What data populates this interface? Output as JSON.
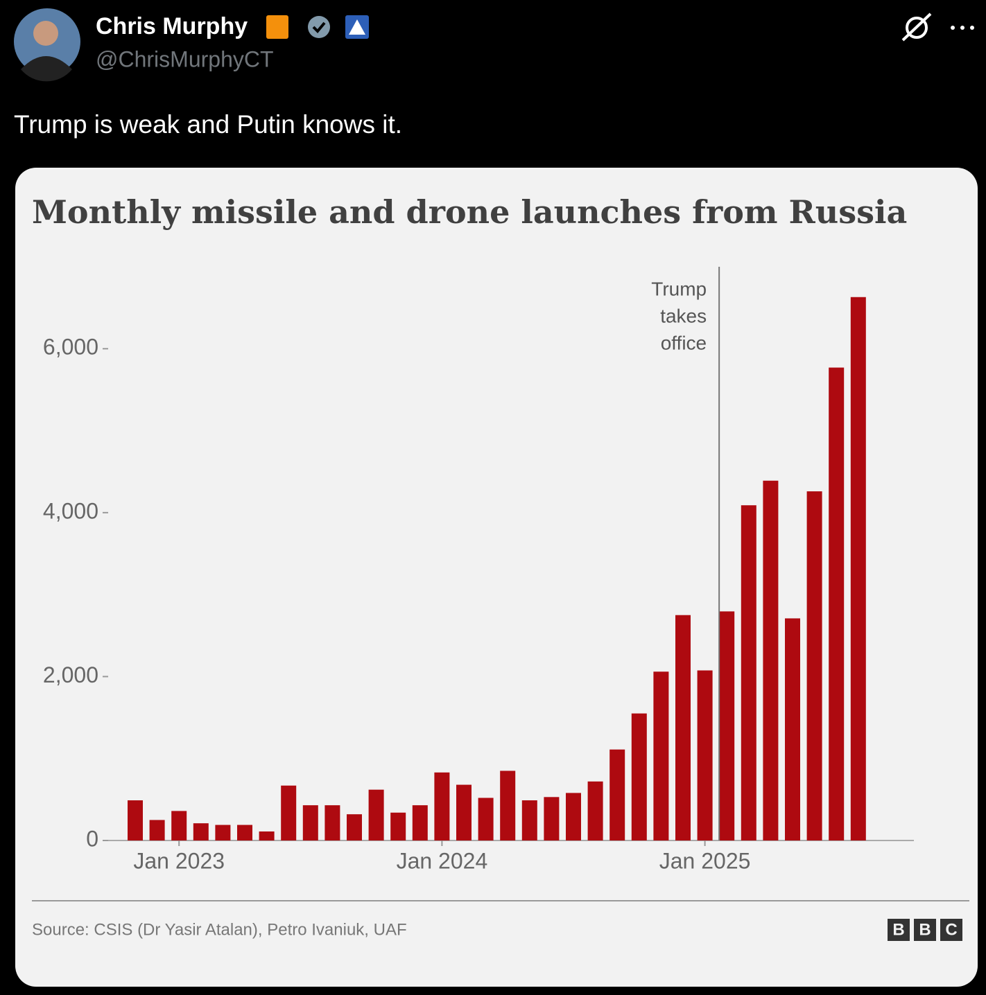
{
  "tweet": {
    "name": "Chris Murphy",
    "handle": "@ChrisMurphyCT",
    "text": "Trump is weak and Putin knows it."
  },
  "chart_data": {
    "type": "bar",
    "title": "Monthly missile and drone launches from Russia",
    "categories": [
      null,
      null,
      "Jan 2023",
      null,
      null,
      null,
      null,
      null,
      null,
      null,
      null,
      null,
      null,
      null,
      "Jan 2024",
      null,
      null,
      null,
      null,
      null,
      null,
      null,
      null,
      null,
      null,
      null,
      "Jan 2025",
      null,
      null,
      null,
      null,
      null,
      null,
      null
    ],
    "values": [
      490,
      250,
      360,
      210,
      190,
      190,
      110,
      670,
      430,
      430,
      320,
      620,
      340,
      430,
      830,
      680,
      520,
      850,
      490,
      530,
      580,
      720,
      1110,
      1550,
      2060,
      2750,
      2075,
      2795,
      4090,
      4390,
      2710,
      4260,
      5770,
      6630
    ],
    "color": "#ae0a10",
    "ylim": [
      0,
      7000
    ],
    "yticks": [
      0,
      {
        "value": 2000,
        "label": "2,000"
      },
      {
        "value": 4000,
        "label": "4,000"
      },
      {
        "value": 6000,
        "label": "6,000"
      }
    ],
    "annotation": [
      "Trump",
      "takes",
      "office"
    ],
    "source": "Source: CSIS (Dr Yasir Atalan), Petro Ivaniuk, UAF",
    "logo": [
      "B",
      "B",
      "C"
    ]
  }
}
